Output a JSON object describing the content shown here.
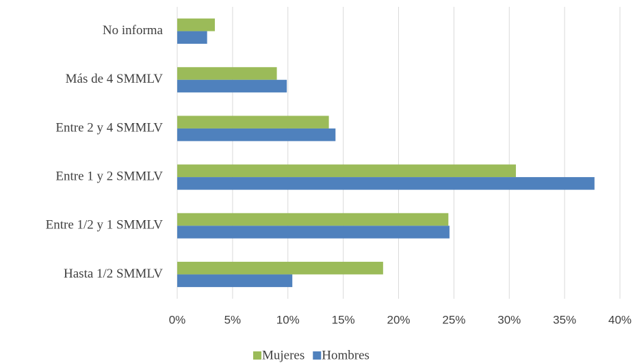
{
  "chart_data": {
    "type": "hbar",
    "categories": [
      "No informa",
      "Más de 4 SMMLV",
      "Entre 2 y 4 SMMLV",
      "Entre 1 y 2 SMMLV",
      "Entre 1/2  y 1 SMMLV",
      "Hasta 1/2 SMMLV"
    ],
    "series": [
      {
        "name": "Mujeres",
        "color": "#9bbb59",
        "values": [
          3.4,
          9.0,
          13.7,
          30.6,
          24.5,
          18.6
        ]
      },
      {
        "name": "Hombres",
        "color": "#4f81bd",
        "values": [
          2.7,
          9.9,
          14.3,
          37.7,
          24.6,
          10.4
        ]
      }
    ],
    "xlim": [
      0,
      40
    ],
    "xticks": [
      {
        "value": 0,
        "label": "0%"
      },
      {
        "value": 5,
        "label": "5%"
      },
      {
        "value": 10,
        "label": "10%"
      },
      {
        "value": 15,
        "label": "15%"
      },
      {
        "value": 20,
        "label": "20%"
      },
      {
        "value": 25,
        "label": "25%"
      },
      {
        "value": 30,
        "label": "30%"
      },
      {
        "value": 35,
        "label": "35%"
      },
      {
        "value": 40,
        "label": "40%"
      }
    ],
    "grid": true,
    "legend": "bottom"
  }
}
